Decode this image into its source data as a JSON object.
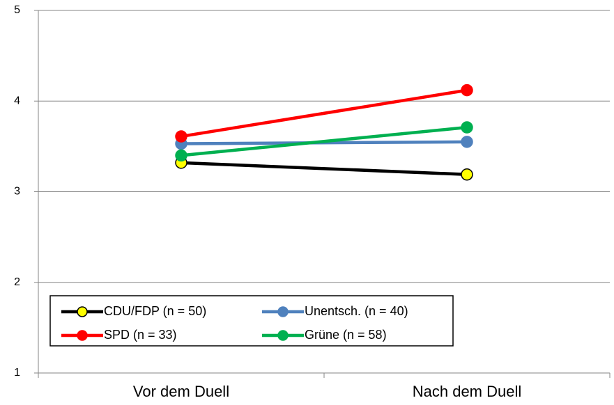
{
  "chart_data": {
    "type": "line",
    "categories": [
      "Vor dem Duell",
      "Nach dem Duell"
    ],
    "series": [
      {
        "name": "CDU/FDP (n = 50)",
        "color": "#000000",
        "marker_color": "#ffff00",
        "values": [
          3.32,
          3.19
        ]
      },
      {
        "name": "Unentsch. (n = 40)",
        "color": "#4f81bd",
        "marker_color": "#4f81bd",
        "values": [
          3.53,
          3.55
        ]
      },
      {
        "name": "SPD (n = 33)",
        "color": "#ff0000",
        "marker_color": "#ff0000",
        "values": [
          3.61,
          4.12
        ]
      },
      {
        "name": "Grüne (n = 58)",
        "color": "#00b050",
        "marker_color": "#00b050",
        "values": [
          3.4,
          3.71
        ]
      }
    ],
    "ylim": [
      1,
      5
    ],
    "yticks": [
      1,
      2,
      3,
      4,
      5
    ],
    "grid": true,
    "legend": "lower left"
  }
}
